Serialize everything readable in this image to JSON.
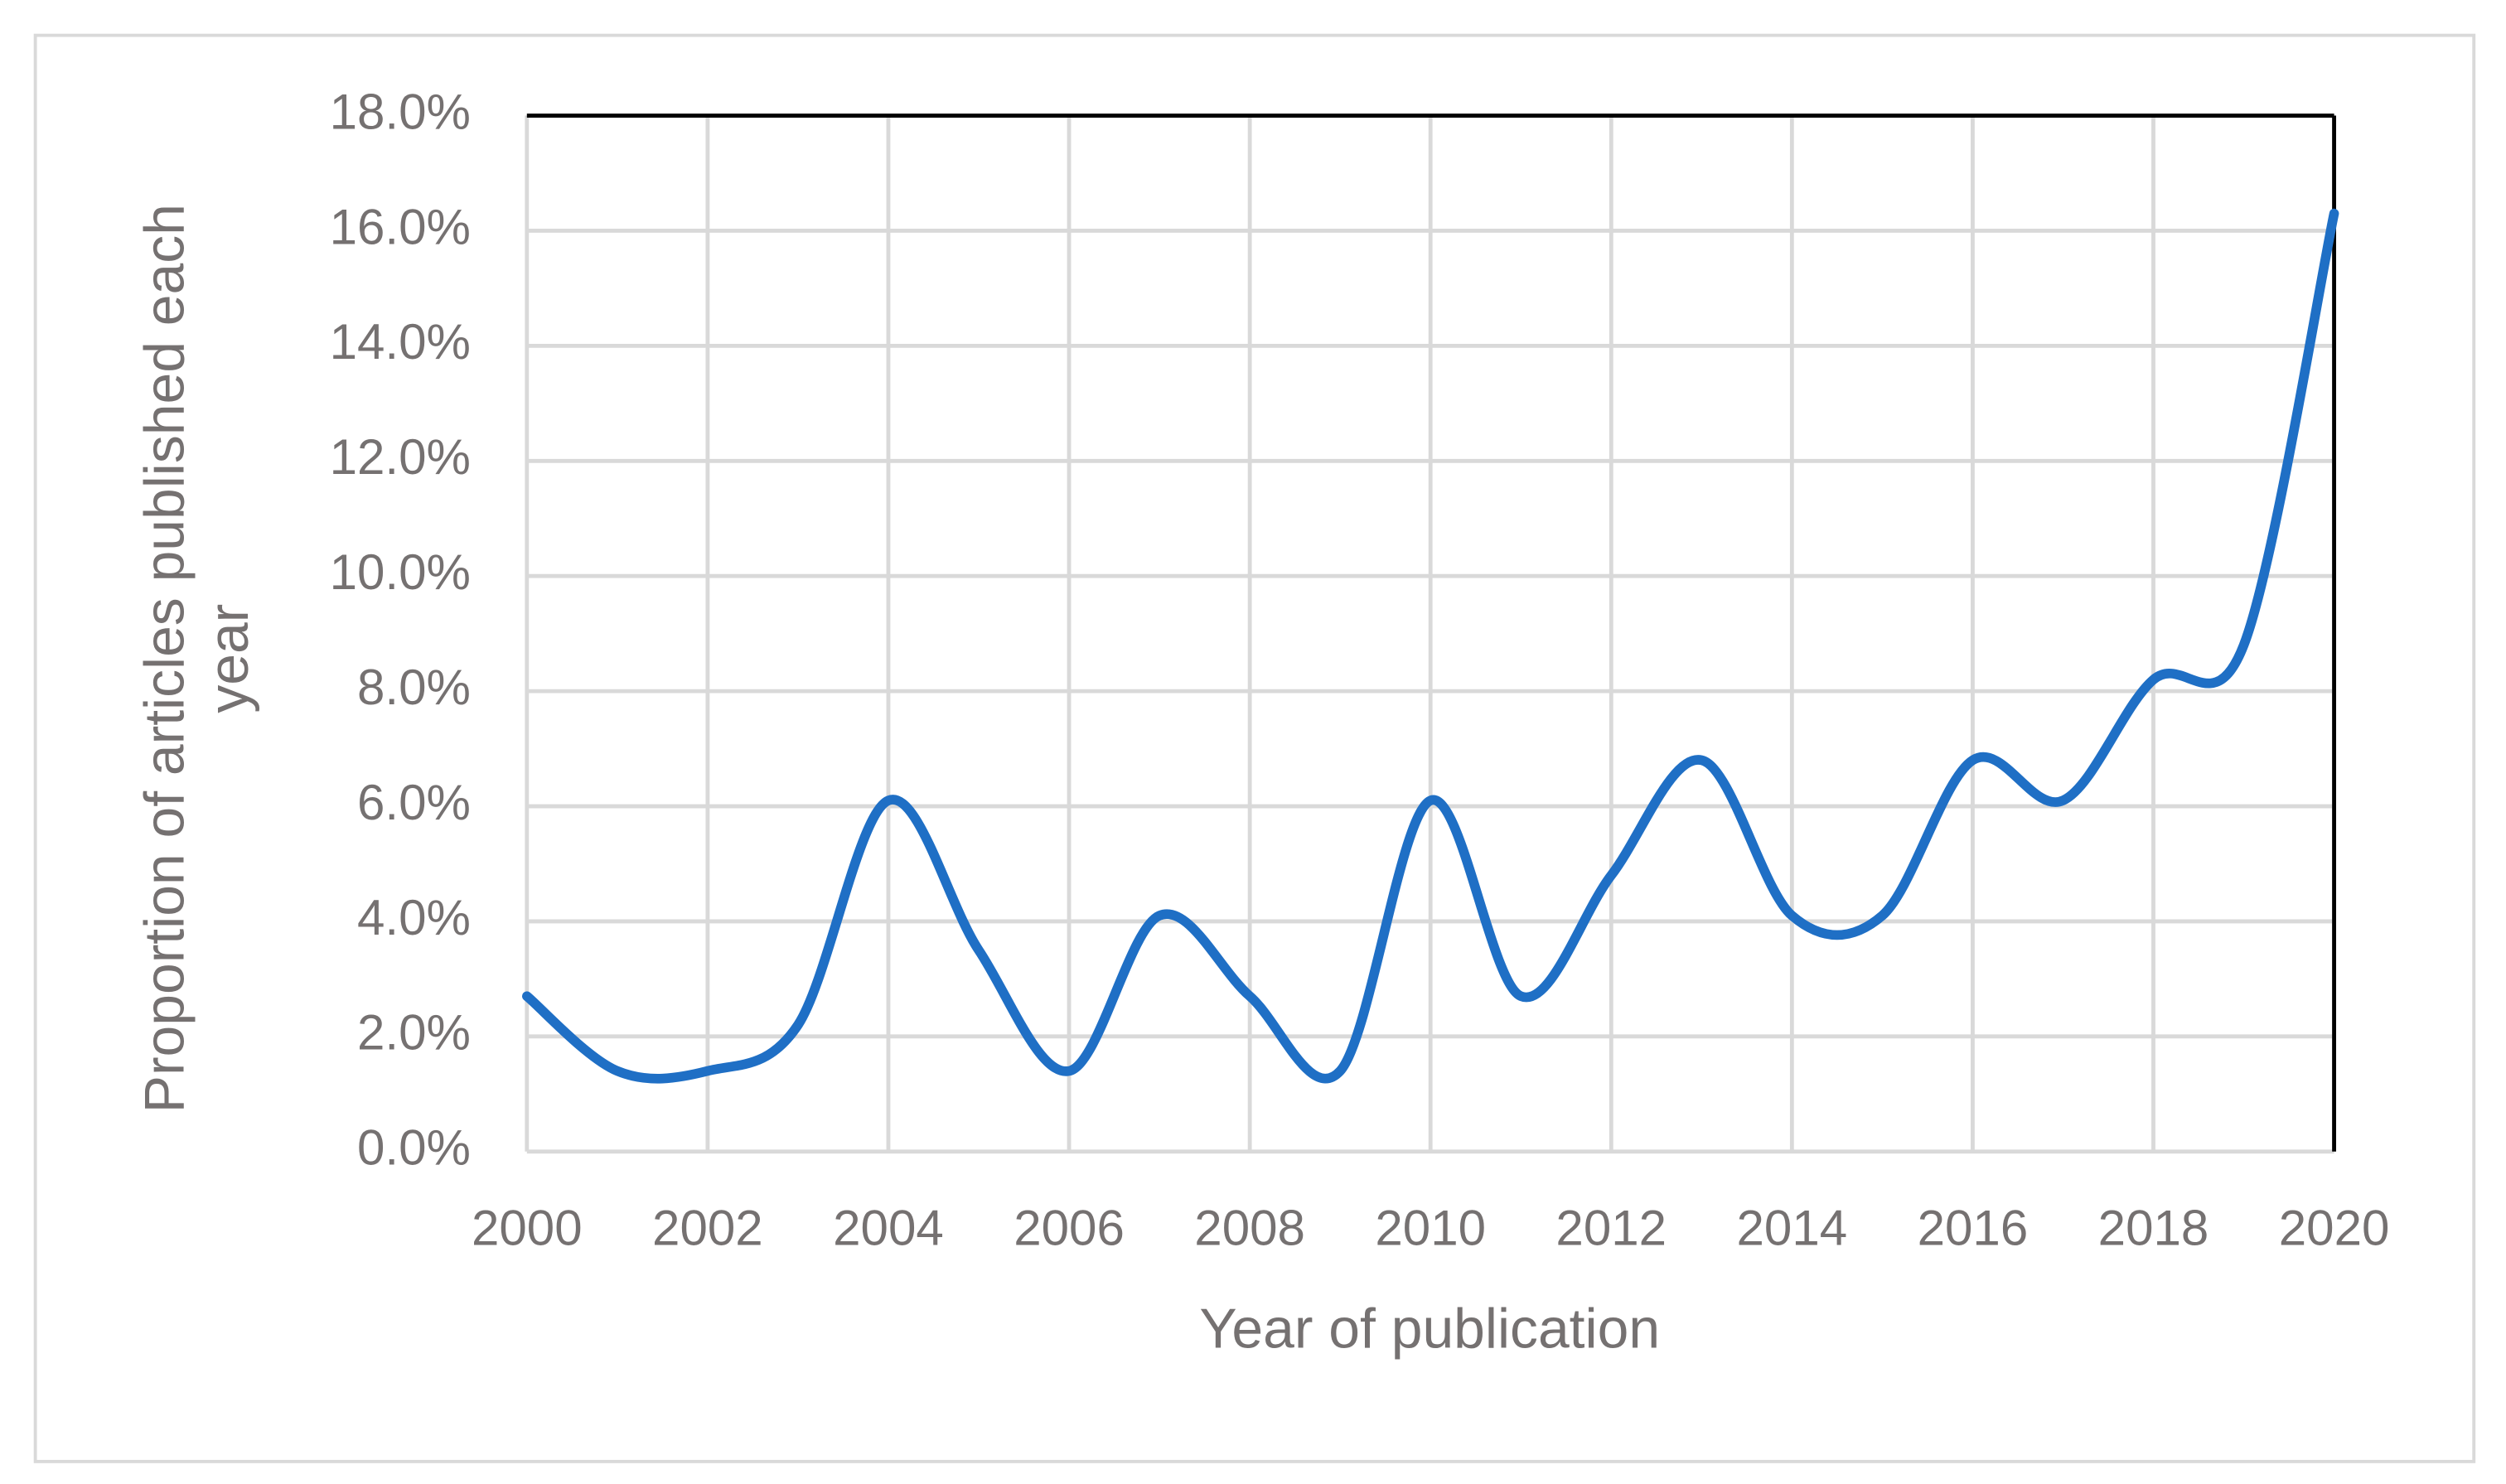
{
  "chart_data": {
    "type": "line",
    "x_label": "Year of publication",
    "y_label": "Proportion of articles published each year",
    "x": [
      2000,
      2001,
      2002,
      2003,
      2004,
      2005,
      2006,
      2007,
      2008,
      2009,
      2010,
      2011,
      2012,
      2013,
      2014,
      2015,
      2016,
      2017,
      2018,
      2019,
      2020
    ],
    "series": [
      {
        "name": "Proportion",
        "color": "#1f6fc5",
        "values": [
          2.7,
          1.4,
          1.4,
          2.2,
          6.1,
          3.5,
          1.4,
          4.1,
          2.7,
          1.4,
          6.1,
          2.7,
          4.8,
          6.8,
          4.1,
          4.1,
          6.8,
          6.1,
          8.2,
          8.8,
          16.3
        ]
      }
    ],
    "xlim": [
      2000,
      2020
    ],
    "xticks": [
      2000,
      2002,
      2004,
      2006,
      2008,
      2010,
      2012,
      2014,
      2016,
      2018,
      2020
    ],
    "ylim": [
      0,
      18
    ],
    "yticks": [
      {
        "value": 0,
        "label": "0.0%"
      },
      {
        "value": 2,
        "label": "2.0%"
      },
      {
        "value": 4,
        "label": "4.0%"
      },
      {
        "value": 6,
        "label": "6.0%"
      },
      {
        "value": 8,
        "label": "8.0%"
      },
      {
        "value": 10,
        "label": "10.0%"
      },
      {
        "value": 12,
        "label": "12.0%"
      },
      {
        "value": 14,
        "label": "14.0%"
      },
      {
        "value": 16,
        "label": "16.0%"
      },
      {
        "value": 18,
        "label": "18.0%"
      }
    ],
    "grid": true,
    "smooth": true
  }
}
